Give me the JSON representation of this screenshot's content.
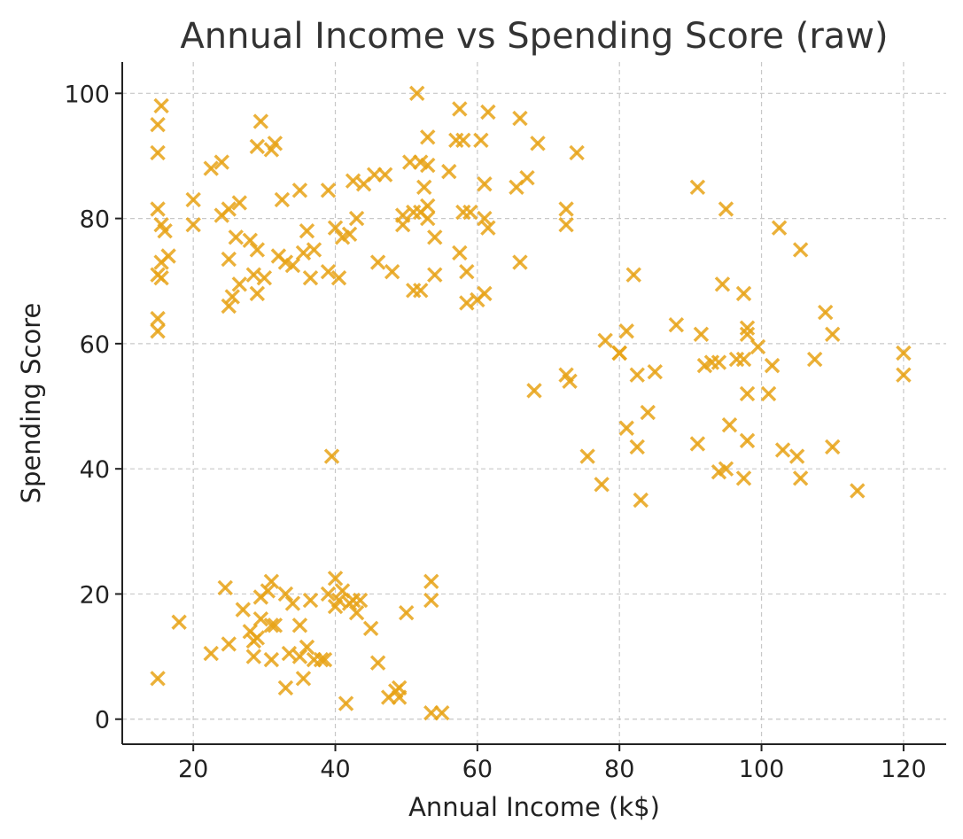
{
  "chart_data": {
    "type": "scatter",
    "title": "Annual Income vs Spending Score (raw)",
    "xlabel": "Annual Income (k$)",
    "ylabel": "Spending Score",
    "xlim": [
      10,
      126
    ],
    "ylim": [
      -4,
      105
    ],
    "xticks": [
      20,
      40,
      60,
      80,
      100,
      120
    ],
    "yticks": [
      0,
      20,
      40,
      60,
      80,
      100
    ],
    "grid": true,
    "marker": "x",
    "color": "#E8A317",
    "series": [
      {
        "points": [
          [
            15,
            95
          ],
          [
            15.5,
            98
          ],
          [
            15,
            90.5
          ],
          [
            15,
            81.5
          ],
          [
            15.5,
            79
          ],
          [
            16,
            78
          ],
          [
            16.5,
            74
          ],
          [
            15.5,
            73
          ],
          [
            15,
            71
          ],
          [
            15.5,
            70.5
          ],
          [
            15,
            64
          ],
          [
            15,
            62
          ],
          [
            20,
            83
          ],
          [
            20,
            79
          ],
          [
            22.5,
            88
          ],
          [
            24,
            89
          ],
          [
            24,
            80.5
          ],
          [
            25,
            81.5
          ],
          [
            26.5,
            82.5
          ],
          [
            26,
            77
          ],
          [
            25,
            73.5
          ],
          [
            26.5,
            69.5
          ],
          [
            25.5,
            67.5
          ],
          [
            25,
            66
          ],
          [
            28,
            76.5
          ],
          [
            29,
            75
          ],
          [
            28.5,
            71
          ],
          [
            30,
            70.5
          ],
          [
            29,
            68
          ],
          [
            29.5,
            95.5
          ],
          [
            29,
            91.5
          ],
          [
            31,
            91
          ],
          [
            31.5,
            92
          ],
          [
            32,
            74
          ],
          [
            33,
            73
          ],
          [
            34,
            72.5
          ],
          [
            32.5,
            83
          ],
          [
            35,
            84.5
          ],
          [
            36,
            78
          ],
          [
            35.5,
            74.5
          ],
          [
            37,
            75
          ],
          [
            36.5,
            70.5
          ],
          [
            39,
            84.5
          ],
          [
            40,
            78.5
          ],
          [
            39,
            71.5
          ],
          [
            40.5,
            70.5
          ],
          [
            41,
            77
          ],
          [
            42,
            77.5
          ],
          [
            43,
            80
          ],
          [
            42.5,
            86
          ],
          [
            44,
            85.5
          ],
          [
            45.5,
            87
          ],
          [
            47,
            87
          ],
          [
            46,
            73
          ],
          [
            48,
            71.5
          ],
          [
            49.5,
            80.5
          ],
          [
            49.5,
            79
          ],
          [
            51,
            81
          ],
          [
            52,
            81
          ],
          [
            51,
            68.5
          ],
          [
            52,
            68.5
          ],
          [
            50.5,
            89
          ],
          [
            52,
            89
          ],
          [
            53,
            88.5
          ],
          [
            53,
            93
          ],
          [
            52.5,
            85
          ],
          [
            53,
            82
          ],
          [
            53,
            80
          ],
          [
            54,
            77
          ],
          [
            54,
            71
          ],
          [
            56,
            87.5
          ],
          [
            57,
            92.5
          ],
          [
            58,
            92.5
          ],
          [
            57.5,
            97.5
          ],
          [
            58,
            81
          ],
          [
            57.5,
            74.5
          ],
          [
            58.5,
            71.5
          ],
          [
            58.5,
            66.5
          ],
          [
            60,
            67
          ],
          [
            59,
            81
          ],
          [
            60.5,
            92.5
          ],
          [
            61,
            85.5
          ],
          [
            61,
            80
          ],
          [
            61.5,
            78.5
          ],
          [
            61,
            68
          ],
          [
            61.5,
            97
          ],
          [
            66,
            96
          ],
          [
            65.5,
            85
          ],
          [
            67,
            86.5
          ],
          [
            66,
            73
          ],
          [
            68.5,
            92
          ],
          [
            72.5,
            81.5
          ],
          [
            72.5,
            79
          ],
          [
            74,
            90.5
          ],
          [
            51.5,
            100
          ],
          [
            15,
            6.5
          ],
          [
            18,
            15.5
          ],
          [
            22.5,
            10.5
          ],
          [
            24.5,
            21
          ],
          [
            25,
            12
          ],
          [
            27,
            17.5
          ],
          [
            28,
            14
          ],
          [
            28.5,
            12.5
          ],
          [
            28.5,
            10
          ],
          [
            29,
            13
          ],
          [
            29.5,
            16
          ],
          [
            29.5,
            19.5
          ],
          [
            30.5,
            20.5
          ],
          [
            31,
            22
          ],
          [
            31,
            15
          ],
          [
            31.5,
            15
          ],
          [
            31,
            9.5
          ],
          [
            33,
            20
          ],
          [
            33,
            5
          ],
          [
            33.5,
            10.5
          ],
          [
            34,
            18.5
          ],
          [
            35,
            15
          ],
          [
            35,
            10
          ],
          [
            36,
            11.5
          ],
          [
            35.5,
            6.5
          ],
          [
            36.5,
            19
          ],
          [
            37,
            9.5
          ],
          [
            38,
            9.5
          ],
          [
            38.5,
            9.5
          ],
          [
            39,
            20
          ],
          [
            40,
            18
          ],
          [
            40,
            22.5
          ],
          [
            40.5,
            19
          ],
          [
            41,
            20.5
          ],
          [
            41.5,
            2.5
          ],
          [
            42,
            18.5
          ],
          [
            42.5,
            19
          ],
          [
            43,
            17
          ],
          [
            43.5,
            19
          ],
          [
            45,
            14.5
          ],
          [
            46,
            9
          ],
          [
            47.5,
            3.5
          ],
          [
            48.5,
            4.5
          ],
          [
            49,
            5
          ],
          [
            49,
            3.5
          ],
          [
            50,
            17
          ],
          [
            53.5,
            22
          ],
          [
            53.5,
            19
          ],
          [
            53.5,
            1
          ],
          [
            55,
            1
          ],
          [
            39.5,
            42
          ],
          [
            68,
            52.5
          ],
          [
            72.5,
            55
          ],
          [
            73,
            54
          ],
          [
            75.5,
            42
          ],
          [
            77.5,
            37.5
          ],
          [
            78,
            60.5
          ],
          [
            80,
            58.5
          ],
          [
            80,
            58.5
          ],
          [
            81,
            62
          ],
          [
            81,
            46.5
          ],
          [
            82,
            71
          ],
          [
            82.5,
            55
          ],
          [
            82.5,
            43.5
          ],
          [
            83,
            35
          ],
          [
            84,
            49
          ],
          [
            85,
            55.5
          ],
          [
            88,
            63
          ],
          [
            91,
            85
          ],
          [
            91,
            44
          ],
          [
            91.5,
            61.5
          ],
          [
            92,
            56.5
          ],
          [
            93,
            57
          ],
          [
            94,
            57
          ],
          [
            94.5,
            69.5
          ],
          [
            94,
            39.5
          ],
          [
            95,
            81.5
          ],
          [
            95,
            40
          ],
          [
            95.5,
            47
          ],
          [
            96.5,
            57.5
          ],
          [
            97.5,
            68
          ],
          [
            97.5,
            38.5
          ],
          [
            98,
            62.5
          ],
          [
            98,
            61.5
          ],
          [
            97.5,
            57.5
          ],
          [
            98,
            52
          ],
          [
            98,
            44.5
          ],
          [
            99.5,
            59.5
          ],
          [
            101,
            52
          ],
          [
            101.5,
            56.5
          ],
          [
            102.5,
            78.5
          ],
          [
            103,
            43
          ],
          [
            105,
            42
          ],
          [
            105.5,
            38.5
          ],
          [
            105.5,
            75
          ],
          [
            107.5,
            57.5
          ],
          [
            109,
            65
          ],
          [
            110,
            61.5
          ],
          [
            110,
            43.5
          ],
          [
            113.5,
            36.5
          ],
          [
            120,
            58.5
          ],
          [
            120,
            55
          ]
        ]
      }
    ]
  }
}
